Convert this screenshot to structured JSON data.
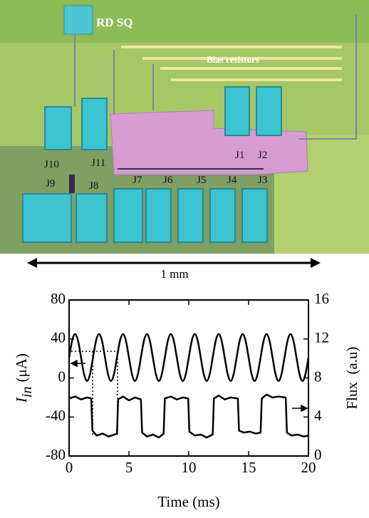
{
  "micrograph": {
    "labels": [
      "RD SQ",
      "Bias resistors",
      "J10",
      "J11",
      "J9",
      "J8",
      "J7",
      "J6",
      "J5",
      "J4",
      "J3",
      "J1",
      "J2"
    ],
    "scale_label": "1 mm"
  },
  "chart_data": {
    "type": "line",
    "xlabel": "Time (ms)",
    "ylabel": {
      "symbol": "I",
      "subscript": "in",
      "unit": "(μA)"
    },
    "y2label": "Flux  (a.u)",
    "xlim": [
      0,
      20
    ],
    "xticks": [
      0,
      5,
      10,
      15,
      20
    ],
    "ylim": [
      -80,
      80
    ],
    "yticks": [
      -80,
      -40,
      0,
      40,
      80
    ],
    "y2lim": [
      0,
      16
    ],
    "y2ticks": [
      0,
      4,
      8,
      12,
      16
    ],
    "series": [
      {
        "color": "#000000",
        "axis": "y",
        "x": [
          0,
          0.25,
          0.5,
          0.75,
          1,
          1.25,
          1.5,
          1.75,
          2,
          2.25,
          2.5,
          2.75,
          3,
          3.25,
          3.5,
          3.75,
          4,
          4.25,
          4.5,
          4.75,
          5,
          5.25,
          5.5,
          5.75,
          6,
          6.25,
          6.5,
          6.75,
          7,
          7.25,
          7.5,
          7.75,
          8,
          8.25,
          8.5,
          8.75,
          9,
          9.25,
          9.5,
          9.75,
          10,
          10.25,
          10.5,
          10.75,
          11,
          11.25,
          11.5,
          11.75,
          12,
          12.25,
          12.5,
          12.75,
          13,
          13.25,
          13.5,
          13.75,
          14,
          14.25,
          14.5,
          14.75,
          15,
          15.25,
          15.5,
          15.75,
          16,
          16.25,
          16.5,
          16.75,
          17,
          17.25,
          17.5,
          17.75,
          18,
          18.25,
          18.5,
          18.75,
          19,
          19.25,
          19.5,
          19.75,
          20
        ],
        "values": [
          21,
          38,
          45,
          38,
          21,
          4,
          -3,
          4,
          21,
          38,
          45,
          38,
          21,
          4,
          -3,
          4,
          21,
          38,
          45,
          38,
          21,
          4,
          -3,
          4,
          21,
          38,
          45,
          38,
          21,
          4,
          -3,
          4,
          21,
          38,
          45,
          38,
          21,
          4,
          -3,
          4,
          21,
          38,
          45,
          38,
          21,
          4,
          -3,
          4,
          21,
          38,
          45,
          38,
          21,
          4,
          -3,
          4,
          21,
          38,
          45,
          38,
          21,
          4,
          -3,
          4,
          21,
          38,
          45,
          38,
          21,
          4,
          -3,
          4,
          21,
          38,
          45,
          38,
          21,
          4,
          -3,
          4,
          21
        ]
      },
      {
        "color": "#000000",
        "axis": "y2",
        "x": [
          0,
          0.5,
          1,
          1.5,
          1.85,
          1.95,
          2.3,
          2.8,
          3.3,
          3.8,
          4,
          4.1,
          4.5,
          5,
          5.5,
          6,
          6.1,
          6.5,
          7,
          7.5,
          7.9,
          8,
          8.5,
          9,
          9.5,
          9.95,
          10.05,
          10.5,
          11,
          11.5,
          12,
          12.1,
          12.5,
          13,
          13.5,
          14.1,
          14.2,
          14.6,
          15.1,
          15.6,
          16,
          16.1,
          16.5,
          17,
          17.5,
          18.1,
          18.2,
          18.6,
          19.1,
          19.6,
          20
        ],
        "values": [
          5.9,
          6.1,
          5.8,
          6.0,
          5.9,
          2.6,
          2.1,
          2.3,
          2.0,
          2.2,
          2.3,
          5.8,
          6.1,
          5.7,
          6.0,
          5.8,
          2.4,
          2.0,
          2.2,
          1.9,
          2.3,
          5.9,
          6.1,
          5.8,
          6.0,
          5.9,
          2.5,
          2.1,
          2.2,
          1.9,
          2.2,
          5.9,
          6.2,
          5.8,
          6.0,
          5.9,
          2.6,
          2.4,
          2.5,
          2.3,
          2.4,
          5.9,
          6.3,
          6.0,
          6.1,
          6.0,
          2.4,
          2.1,
          2.2,
          2.0,
          2.1
        ]
      }
    ]
  }
}
